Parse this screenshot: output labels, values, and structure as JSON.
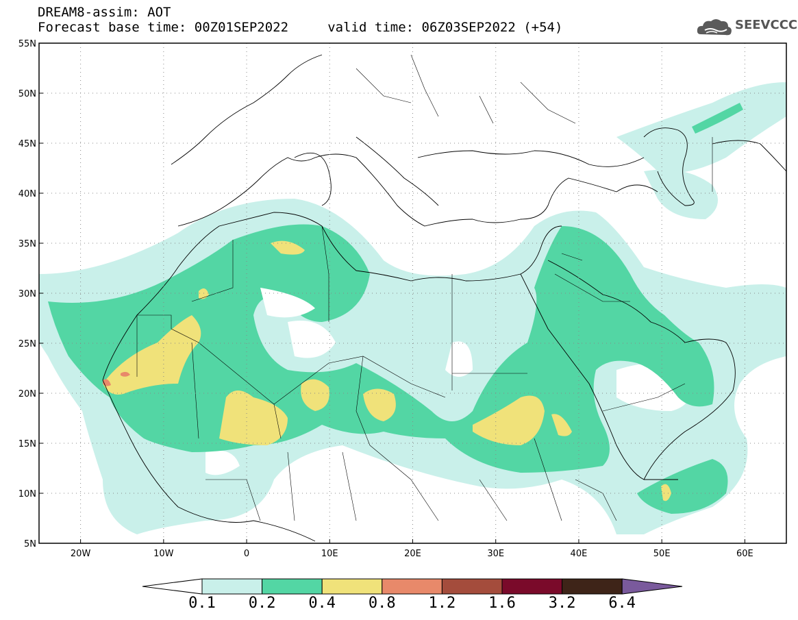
{
  "header": {
    "title_line1": "DREAM8-assim: AOT",
    "title_line2": "Forecast base time: 00Z01SEP2022     valid time: 06Z03SEP2022 (+54)"
  },
  "logo": {
    "text": "SEEVCCC",
    "icon": "cloud-icon"
  },
  "map": {
    "lat_labels": [
      "55N",
      "50N",
      "45N",
      "40N",
      "35N",
      "30N",
      "25N",
      "20N",
      "15N",
      "10N",
      "5N"
    ],
    "lon_labels": [
      "20W",
      "10W",
      "0",
      "10E",
      "20E",
      "30E",
      "40E",
      "50E",
      "60E"
    ],
    "lat_range": [
      5,
      55
    ],
    "lon_range": [
      -25,
      65
    ],
    "grid": "dotted"
  },
  "colorbar": {
    "levels": [
      "0.1",
      "0.2",
      "0.4",
      "0.8",
      "1.2",
      "1.6",
      "3.2",
      "6.4"
    ],
    "colors": [
      "#ffffff",
      "#c9f0ea",
      "#53d6a4",
      "#f0e27a",
      "#e8896a",
      "#a44c3c",
      "#7a0a2a",
      "#3e2418",
      "#7a5a9c"
    ]
  }
}
